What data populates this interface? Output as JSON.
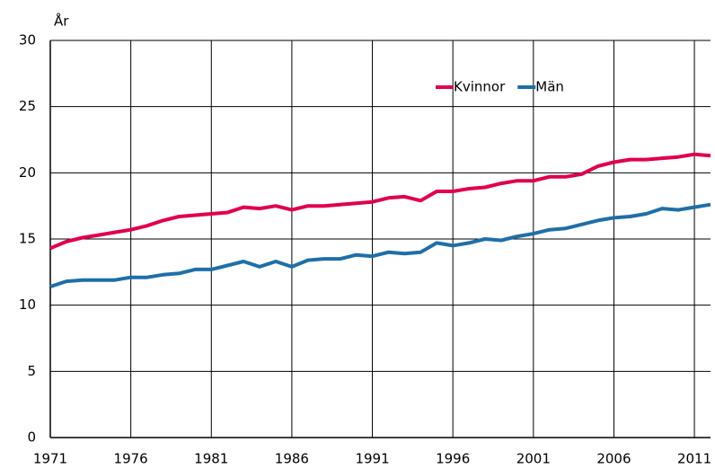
{
  "chart_data": {
    "type": "line",
    "ylabel": "År",
    "x": [
      1971,
      1972,
      1973,
      1974,
      1975,
      1976,
      1977,
      1978,
      1979,
      1980,
      1981,
      1982,
      1983,
      1984,
      1985,
      1986,
      1987,
      1988,
      1989,
      1990,
      1991,
      1992,
      1993,
      1994,
      1995,
      1996,
      1997,
      1998,
      1999,
      2000,
      2001,
      2002,
      2003,
      2004,
      2005,
      2006,
      2007,
      2008,
      2009,
      2010,
      2011,
      2012
    ],
    "series": [
      {
        "name": "Kvinnor",
        "color": "#e0004d",
        "values": [
          14.3,
          14.8,
          15.1,
          15.3,
          15.5,
          15.7,
          16.0,
          16.4,
          16.7,
          16.8,
          16.9,
          17.0,
          17.4,
          17.3,
          17.5,
          17.2,
          17.5,
          17.5,
          17.6,
          17.7,
          17.8,
          18.1,
          18.2,
          17.9,
          18.6,
          18.6,
          18.8,
          18.9,
          19.2,
          19.4,
          19.4,
          19.7,
          19.7,
          19.9,
          20.5,
          20.8,
          21.0,
          21.0,
          21.1,
          21.2,
          21.4,
          21.3
        ]
      },
      {
        "name": "Män",
        "color": "#1f6fa8",
        "values": [
          11.4,
          11.8,
          11.9,
          11.9,
          11.9,
          12.1,
          12.1,
          12.3,
          12.4,
          12.7,
          12.7,
          13.0,
          13.3,
          12.9,
          13.3,
          12.9,
          13.4,
          13.5,
          13.5,
          13.8,
          13.7,
          14.0,
          13.9,
          14.0,
          14.7,
          14.5,
          14.7,
          15.0,
          14.9,
          15.2,
          15.4,
          15.7,
          15.8,
          16.1,
          16.4,
          16.6,
          16.7,
          16.9,
          17.3,
          17.2,
          17.4,
          17.6
        ]
      }
    ],
    "xlim": [
      1971,
      2012
    ],
    "xticks": [
      1971,
      1976,
      1981,
      1986,
      1991,
      1996,
      2001,
      2006,
      2011
    ],
    "ylim": [
      0,
      30
    ],
    "yticks": [
      0,
      5,
      10,
      15,
      20,
      25,
      30
    ],
    "grid": true,
    "legend": "upper-right"
  }
}
